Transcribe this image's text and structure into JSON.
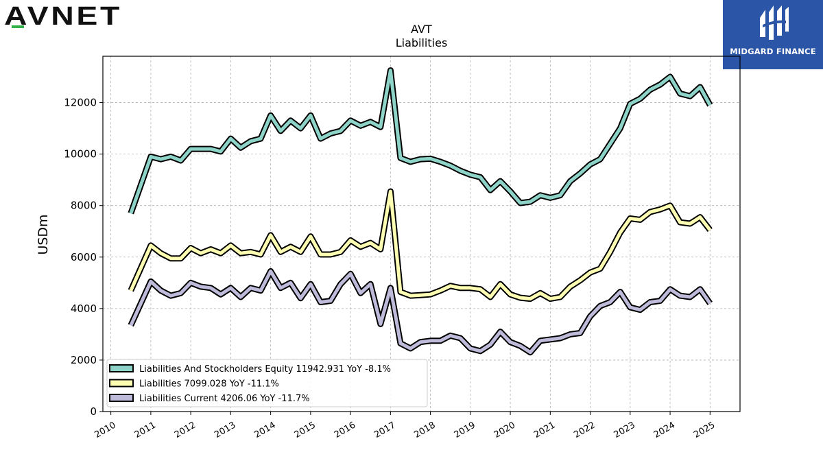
{
  "brand": {
    "left_logo_text": "AVNET",
    "right_logo_text": "MIDGARD FINANCE",
    "right_logo_color": "#2b55a6"
  },
  "chart_data": {
    "type": "line",
    "title": "AVT",
    "subtitle": "Liabilities",
    "ylabel": "USDm",
    "xlabel": "",
    "ylim": [
      0,
      13800
    ],
    "xlim": [
      2009.8,
      2025.75
    ],
    "yticks": [
      0,
      2000,
      4000,
      6000,
      8000,
      10000,
      12000
    ],
    "xticks": [
      2010,
      2011,
      2012,
      2013,
      2014,
      2015,
      2016,
      2017,
      2018,
      2019,
      2020,
      2021,
      2022,
      2023,
      2024,
      2025
    ],
    "grid": true,
    "legend_position": "bottom-left",
    "series": [
      {
        "name": "Liabilities And Stockholders Equity",
        "legend_label": "Liabilities And Stockholders Equity  11942.931 YoY -8.1%",
        "color": "#8dd3c7",
        "x": [
          2010.5,
          2011.0,
          2011.25,
          2011.5,
          2011.75,
          2012.0,
          2012.25,
          2012.5,
          2012.75,
          2013.0,
          2013.25,
          2013.5,
          2013.75,
          2014.0,
          2014.25,
          2014.5,
          2014.75,
          2015.0,
          2015.25,
          2015.5,
          2015.75,
          2016.0,
          2016.25,
          2016.5,
          2016.75,
          2017.0,
          2017.25,
          2017.5,
          2017.75,
          2018.0,
          2018.25,
          2018.5,
          2018.75,
          2019.0,
          2019.25,
          2019.5,
          2019.75,
          2020.0,
          2020.25,
          2020.5,
          2020.75,
          2021.0,
          2021.25,
          2021.5,
          2021.75,
          2022.0,
          2022.25,
          2022.5,
          2022.75,
          2023.0,
          2023.25,
          2023.5,
          2023.75,
          2024.0,
          2024.25,
          2024.5,
          2024.75,
          2025.0
        ],
        "values": [
          7700,
          9900,
          9800,
          9900,
          9750,
          10200,
          10200,
          10200,
          10100,
          10600,
          10250,
          10500,
          10600,
          11500,
          10900,
          11300,
          11000,
          11500,
          10600,
          10800,
          10900,
          11300,
          11100,
          11250,
          11050,
          13250,
          9850,
          9700,
          9800,
          9820,
          9700,
          9550,
          9350,
          9200,
          9100,
          8600,
          8950,
          8550,
          8100,
          8150,
          8400,
          8300,
          8400,
          8950,
          9250,
          9600,
          9800,
          10400,
          11000,
          11950,
          12150,
          12500,
          12700,
          13000,
          12350,
          12250,
          12600,
          11900
        ]
      },
      {
        "name": "Liabilities",
        "legend_label": "Liabilities  7099.028 YoY -11.1%",
        "color": "#ffffb3",
        "x": [
          2010.5,
          2011.0,
          2011.25,
          2011.5,
          2011.75,
          2012.0,
          2012.25,
          2012.5,
          2012.75,
          2013.0,
          2013.25,
          2013.5,
          2013.75,
          2014.0,
          2014.25,
          2014.5,
          2014.75,
          2015.0,
          2015.25,
          2015.5,
          2015.75,
          2016.0,
          2016.25,
          2016.5,
          2016.75,
          2017.0,
          2017.25,
          2017.5,
          2017.75,
          2018.0,
          2018.25,
          2018.5,
          2018.75,
          2019.0,
          2019.25,
          2019.5,
          2019.75,
          2020.0,
          2020.25,
          2020.5,
          2020.75,
          2021.0,
          2021.25,
          2021.5,
          2021.75,
          2022.0,
          2022.25,
          2022.5,
          2022.75,
          2023.0,
          2023.25,
          2023.5,
          2023.75,
          2024.0,
          2024.25,
          2024.5,
          2024.75,
          2025.0
        ],
        "values": [
          4700,
          6450,
          6150,
          5950,
          5950,
          6350,
          6150,
          6300,
          6150,
          6450,
          6150,
          6200,
          6100,
          6850,
          6200,
          6400,
          6200,
          6800,
          6100,
          6100,
          6200,
          6650,
          6400,
          6550,
          6300,
          8550,
          4650,
          4500,
          4520,
          4550,
          4700,
          4880,
          4800,
          4800,
          4750,
          4450,
          4950,
          4550,
          4420,
          4380,
          4600,
          4380,
          4450,
          4850,
          5100,
          5400,
          5550,
          6200,
          6950,
          7500,
          7450,
          7750,
          7850,
          8000,
          7350,
          7300,
          7550,
          7050
        ]
      },
      {
        "name": "Liabilities Current",
        "legend_label": "Liabilities Current  4206.06 YoY -11.7%",
        "color": "#bebada",
        "x": [
          2010.5,
          2011.0,
          2011.25,
          2011.5,
          2011.75,
          2012.0,
          2012.25,
          2012.5,
          2012.75,
          2013.0,
          2013.25,
          2013.5,
          2013.75,
          2014.0,
          2014.25,
          2014.5,
          2014.75,
          2015.0,
          2015.25,
          2015.5,
          2015.75,
          2016.0,
          2016.25,
          2016.5,
          2016.75,
          2017.0,
          2017.25,
          2017.5,
          2017.75,
          2018.0,
          2018.25,
          2018.5,
          2018.75,
          2019.0,
          2019.25,
          2019.5,
          2019.75,
          2020.0,
          2020.25,
          2020.5,
          2020.75,
          2021.0,
          2021.25,
          2021.5,
          2021.75,
          2022.0,
          2022.25,
          2022.5,
          2022.75,
          2023.0,
          2023.25,
          2023.5,
          2023.75,
          2024.0,
          2024.25,
          2024.5,
          2024.75,
          2025.0
        ],
        "values": [
          3350,
          5050,
          4700,
          4500,
          4600,
          5000,
          4850,
          4800,
          4550,
          4800,
          4450,
          4800,
          4700,
          5450,
          4800,
          5000,
          4400,
          4950,
          4250,
          4300,
          4950,
          5350,
          4600,
          4950,
          3400,
          4800,
          2650,
          2450,
          2700,
          2750,
          2750,
          2950,
          2850,
          2450,
          2350,
          2600,
          3100,
          2700,
          2550,
          2300,
          2750,
          2800,
          2850,
          3000,
          3050,
          3700,
          4100,
          4250,
          4650,
          4050,
          3950,
          4250,
          4300,
          4750,
          4500,
          4450,
          4750,
          4200
        ]
      }
    ]
  }
}
